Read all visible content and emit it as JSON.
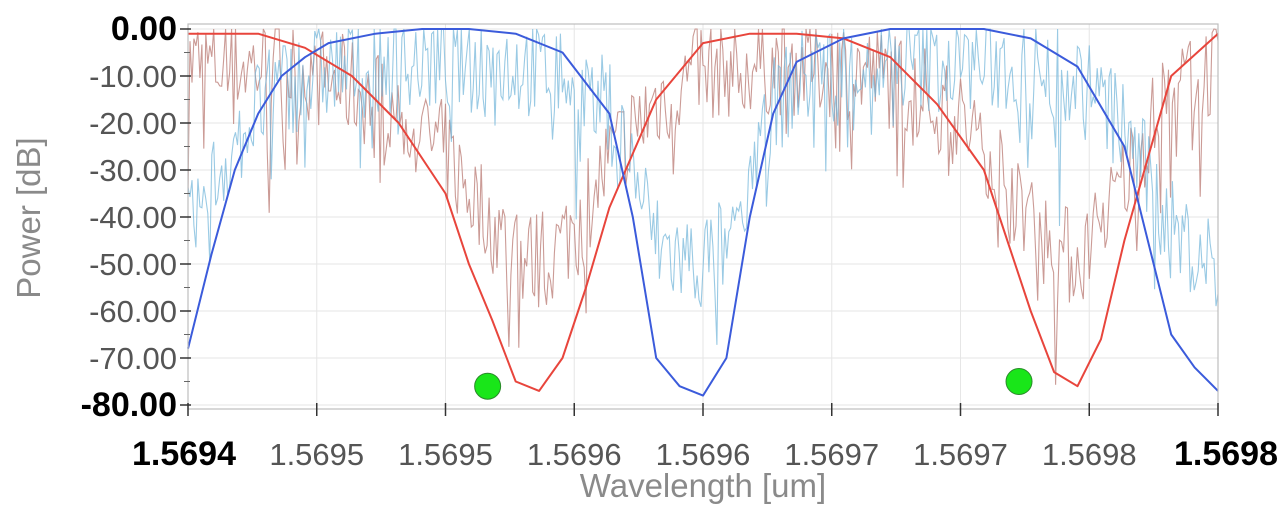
{
  "chart_data": {
    "type": "line",
    "title": "",
    "xlabel": "Wavelength [um]",
    "ylabel": "Power [dB]",
    "xlim": [
      1.5694,
      1.56984
    ],
    "ylim": [
      -80,
      0
    ],
    "grid": true,
    "legend": "none",
    "x_tick_labels": [
      "1.5694",
      "1.5695",
      "1.5695",
      "1.5696",
      "1.5696",
      "1.5697",
      "1.5697",
      "1.5698",
      "1.5698"
    ],
    "y_tick_labels": [
      "0.00",
      "-10.00",
      "-20.00",
      "-30.00",
      "-40.00",
      "-50.00",
      "-60.00",
      "-70.00",
      "-80.00"
    ],
    "colors": {
      "red_line": "#e8453c",
      "blue_line": "#3b5bdb",
      "red_noise": "#b5716a",
      "blue_noise": "#6fb3d9",
      "marker": "#19e619",
      "marker_edge": "#2a8a2a"
    },
    "series": [
      {
        "x": [
          1.5694,
          1.56943,
          1.56945,
          1.56947,
          1.56949,
          1.56951,
          1.56952,
          1.56953,
          1.56954,
          1.56955,
          1.56956,
          1.56957,
          1.56958,
          1.5696,
          1.56962,
          1.56964,
          1.56966,
          1.56968,
          1.5697,
          1.56972,
          1.56974,
          1.56975,
          1.56976,
          1.56977,
          1.56978,
          1.56979,
          1.5698,
          1.56982,
          1.56984
        ],
        "y": [
          -1,
          -1,
          -4,
          -10,
          -20,
          -35,
          -50,
          -62,
          -75,
          -77,
          -70,
          -55,
          -38,
          -15,
          -3,
          -1,
          -1,
          -2,
          -6,
          -16,
          -30,
          -45,
          -60,
          -73,
          -76,
          -66,
          -45,
          -10,
          -1
        ]
      },
      {
        "x": [
          1.5694,
          1.56941,
          1.56942,
          1.56943,
          1.56944,
          1.56945,
          1.56946,
          1.56948,
          1.5695,
          1.56952,
          1.56954,
          1.56956,
          1.56958,
          1.56959,
          1.5696,
          1.56961,
          1.56962,
          1.56963,
          1.56964,
          1.56965,
          1.56966,
          1.56968,
          1.5697,
          1.56972,
          1.56974,
          1.56976,
          1.56978,
          1.5698,
          1.56981,
          1.56982,
          1.56983,
          1.56984
        ],
        "y": [
          -68,
          -48,
          -30,
          -18,
          -10,
          -6,
          -3,
          -1,
          0,
          0,
          -1,
          -5,
          -18,
          -40,
          -70,
          -76,
          -78,
          -70,
          -40,
          -18,
          -7,
          -2,
          0,
          0,
          0,
          -2,
          -8,
          -25,
          -45,
          -65,
          -72,
          -77
        ]
      }
    ],
    "markers": [
      {
        "x": 1.569528,
        "y": -76
      },
      {
        "x": 1.569755,
        "y": -75
      }
    ]
  }
}
